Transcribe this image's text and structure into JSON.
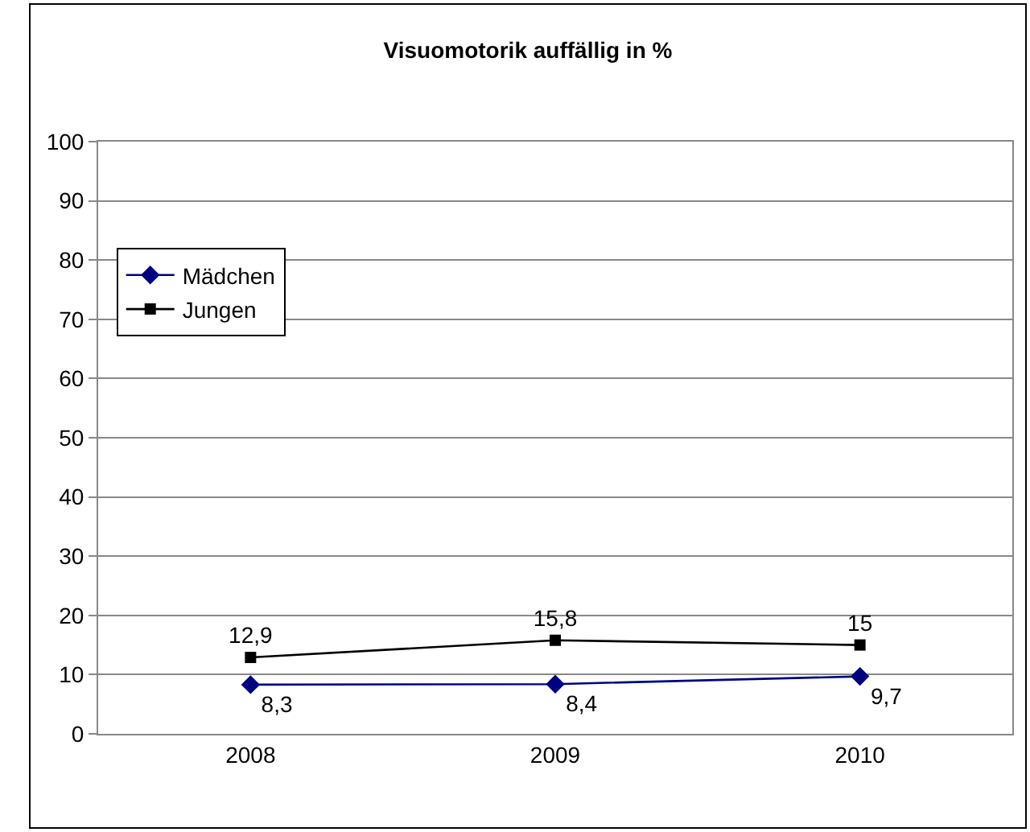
{
  "chart_data": {
    "type": "line",
    "title": "Visuomotorik auffällig in %",
    "categories": [
      "2008",
      "2009",
      "2010"
    ],
    "series": [
      {
        "name": "Mädchen",
        "color": "#000080",
        "values": [
          8.3,
          8.4,
          9.7
        ],
        "marker": "diamond",
        "value_labels": [
          "8,3",
          "8,4",
          "9,7"
        ]
      },
      {
        "name": "Jungen",
        "color": "#000000",
        "values": [
          12.9,
          15.8,
          15
        ],
        "marker": "square",
        "value_labels": [
          "12,9",
          "15,8",
          "15"
        ]
      }
    ],
    "ylim": [
      0,
      100
    ],
    "yticks": [
      0,
      10,
      20,
      30,
      40,
      50,
      60,
      70,
      80,
      90,
      100
    ],
    "grid": "y",
    "legend": "top left",
    "line_style": "solid"
  }
}
